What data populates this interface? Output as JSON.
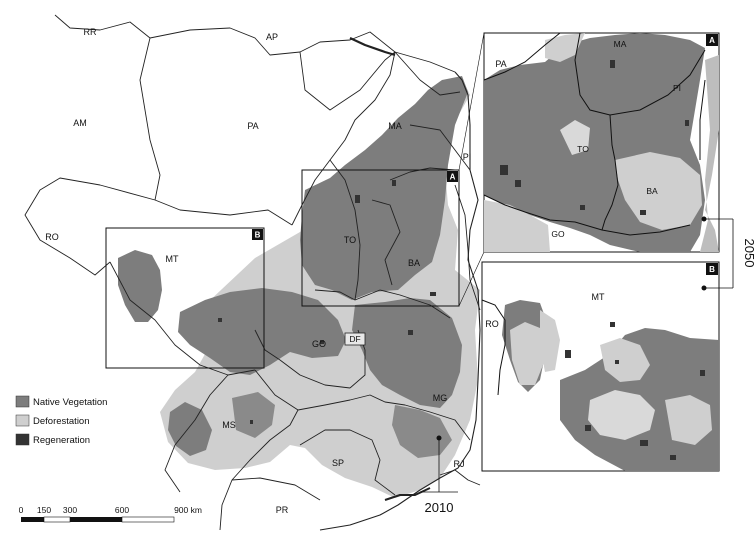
{
  "main_map": {
    "state_labels": {
      "rr": "RR",
      "ap": "AP",
      "am": "AM",
      "pa": "PA",
      "ma": "MA",
      "pi": "PI",
      "ro": "RO",
      "mt": "MT",
      "to": "TO",
      "ba": "BA",
      "go": "GO",
      "df": "DF",
      "mg": "MG",
      "ms": "MS",
      "sp": "SP",
      "rj": "RJ",
      "pr": "PR"
    },
    "frame_tags": {
      "a": "A",
      "b": "B"
    }
  },
  "inset_a": {
    "tag": "A",
    "labels": {
      "pa": "PA",
      "ma": "MA",
      "pi": "PI",
      "to": "TO",
      "ba": "BA",
      "go": "GO"
    }
  },
  "inset_b": {
    "tag": "B",
    "labels": {
      "mt": "MT",
      "ro": "RO"
    }
  },
  "legend": [
    {
      "label": "Native Vegetation",
      "color": "#7d7d7d"
    },
    {
      "label": "Deforestation",
      "color": "#cfcfcf"
    },
    {
      "label": "Regeneration",
      "color": "#333333"
    }
  ],
  "scale_bar": {
    "ticks": [
      "0",
      "150",
      "300",
      "600",
      "900 km"
    ]
  },
  "years": {
    "current": "2010",
    "future": "2050"
  },
  "colors": {
    "native_vegetation": "#7d7d7d",
    "deforestation": "#cfcfcf",
    "regeneration": "#333333",
    "background": "#ffffff",
    "boundary": "#222222"
  }
}
